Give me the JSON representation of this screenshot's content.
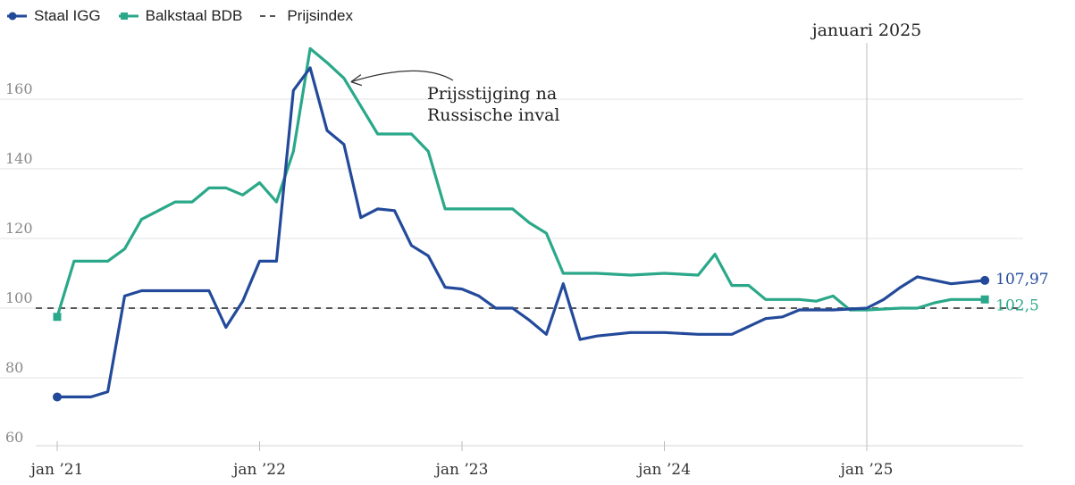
{
  "legend": {
    "items": [
      {
        "label": "Staal IGG",
        "color": "#234a9a",
        "style": "line-dot"
      },
      {
        "label": "Balkstaal BDB",
        "color": "#2aa889",
        "style": "line-square"
      },
      {
        "label": "Prijsindex",
        "color": "#555555",
        "style": "dashed"
      }
    ]
  },
  "chart_data": {
    "type": "line",
    "ylim": [
      60,
      175
    ],
    "yticks": [
      60,
      80,
      100,
      120,
      140,
      160
    ],
    "ytick_labels": [
      "60",
      "80",
      "100",
      "120",
      "140",
      "160"
    ],
    "xlim": [
      0,
      32
    ],
    "xticks": [
      0,
      6,
      12,
      18,
      24
    ],
    "xtick_labels": [
      "jan ’21",
      "jan ’22",
      "jan ’23",
      "jan ’24",
      "jan ’25"
    ],
    "grid": true,
    "legend_position": "top-left",
    "reference_line": {
      "y": 100,
      "label": "Prijsindex"
    },
    "vertical_marker": {
      "x": 24,
      "label": "januari 2025"
    },
    "annotation": {
      "lines": [
        "Prijsstijging na",
        "Russische inval"
      ],
      "points_to": {
        "x": 8.5,
        "y": 166
      }
    },
    "series": [
      {
        "name": "Staal IGG",
        "color": "#234a9a",
        "end_label": "107,97",
        "points": [
          [
            0,
            74.5
          ],
          [
            1,
            74.5
          ],
          [
            1.5,
            76
          ],
          [
            2,
            103.5
          ],
          [
            2.5,
            105
          ],
          [
            3,
            105
          ],
          [
            4,
            105
          ],
          [
            4.5,
            105
          ],
          [
            5,
            94.5
          ],
          [
            5.5,
            102
          ],
          [
            6,
            113.5
          ],
          [
            6.5,
            113.5
          ],
          [
            7,
            162.5
          ],
          [
            7.5,
            169
          ],
          [
            8,
            151
          ],
          [
            8.5,
            147
          ],
          [
            9,
            126
          ],
          [
            9.5,
            128.5
          ],
          [
            10,
            128
          ],
          [
            10.5,
            118
          ],
          [
            11,
            115
          ],
          [
            11.5,
            106
          ],
          [
            12,
            105.5
          ],
          [
            12.5,
            103.5
          ],
          [
            13,
            100
          ],
          [
            13.5,
            100
          ],
          [
            14,
            96.5
          ],
          [
            14.5,
            92.5
          ],
          [
            15,
            107
          ],
          [
            15.5,
            91
          ],
          [
            16,
            92
          ],
          [
            17,
            93
          ],
          [
            18,
            93
          ],
          [
            19,
            92.5
          ],
          [
            20,
            92.5
          ],
          [
            21,
            97
          ],
          [
            21.5,
            97.5
          ],
          [
            22,
            99.5
          ],
          [
            23,
            99.5
          ],
          [
            24,
            100
          ],
          [
            24.5,
            102.5
          ],
          [
            25,
            106
          ],
          [
            25.5,
            109
          ],
          [
            26,
            108
          ],
          [
            26.5,
            107
          ],
          [
            27,
            107.5
          ],
          [
            27.5,
            107.97
          ]
        ]
      },
      {
        "name": "Balkstaal BDB",
        "color": "#2aa889",
        "end_label": "102,5",
        "points": [
          [
            0,
            97.5
          ],
          [
            0.5,
            113.5
          ],
          [
            1,
            113.5
          ],
          [
            1.5,
            113.5
          ],
          [
            2,
            117
          ],
          [
            2.5,
            125.5
          ],
          [
            3,
            128
          ],
          [
            3.5,
            130.5
          ],
          [
            4,
            130.5
          ],
          [
            4.5,
            134.5
          ],
          [
            5,
            134.5
          ],
          [
            5.5,
            132.5
          ],
          [
            6,
            136
          ],
          [
            6.5,
            130.5
          ],
          [
            7,
            145
          ],
          [
            7.5,
            174.5
          ],
          [
            8,
            170.5
          ],
          [
            8.5,
            166
          ],
          [
            9,
            158
          ],
          [
            9.5,
            150
          ],
          [
            10,
            150
          ],
          [
            10.5,
            150
          ],
          [
            11,
            145
          ],
          [
            11.5,
            128.5
          ],
          [
            12,
            128.5
          ],
          [
            13,
            128.5
          ],
          [
            13.5,
            128.5
          ],
          [
            14,
            124.5
          ],
          [
            14.5,
            121.5
          ],
          [
            15,
            110
          ],
          [
            16,
            110
          ],
          [
            17,
            109.5
          ],
          [
            18,
            110
          ],
          [
            19,
            109.5
          ],
          [
            19.5,
            115.5
          ],
          [
            20,
            106.5
          ],
          [
            20.5,
            106.5
          ],
          [
            21,
            102.5
          ],
          [
            22,
            102.5
          ],
          [
            22.5,
            102
          ],
          [
            23,
            103.5
          ],
          [
            23.5,
            99.5
          ],
          [
            24,
            99.5
          ],
          [
            25,
            100
          ],
          [
            25.5,
            100
          ],
          [
            26,
            101.5
          ],
          [
            26.5,
            102.5
          ],
          [
            27,
            102.5
          ],
          [
            27.5,
            102.5
          ]
        ]
      }
    ]
  }
}
